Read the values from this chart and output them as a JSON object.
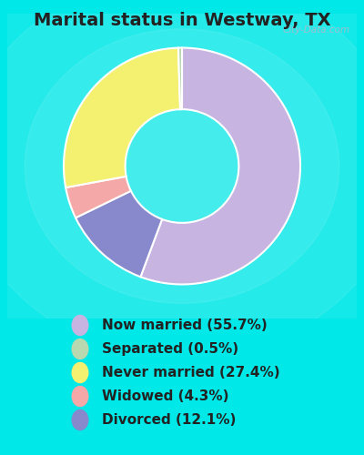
{
  "title": "Marital status in Westway, TX",
  "slices": [
    {
      "label": "Now married (55.7%)",
      "value": 55.7,
      "color": "#c8b4e0"
    },
    {
      "label": "Separated (0.5%)",
      "value": 0.5,
      "color": "#b8d8b0"
    },
    {
      "label": "Never married (27.4%)",
      "value": 27.4,
      "color": "#f4f070"
    },
    {
      "label": "Widowed (4.3%)",
      "value": 4.3,
      "color": "#f4a8a8"
    },
    {
      "label": "Divorced (12.1%)",
      "value": 12.1,
      "color": "#8888cc"
    }
  ],
  "bg_outer": "#00e8e8",
  "bg_chart_color1": "#e8f5e8",
  "bg_chart_color2": "#d8eee8",
  "watermark": "City-Data.com",
  "title_fontsize": 14,
  "legend_fontsize": 11,
  "donut_width": 0.52
}
